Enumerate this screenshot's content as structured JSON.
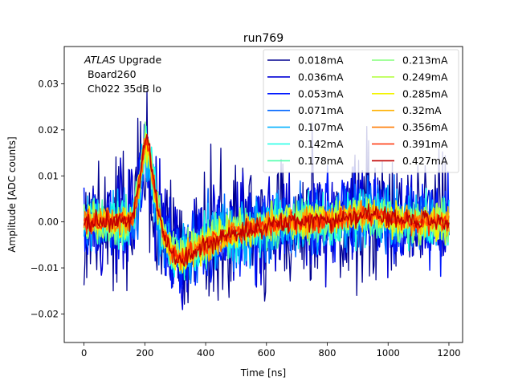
{
  "chart_data": {
    "type": "line",
    "title": "run769",
    "xlabel": "Time [ns]",
    "ylabel": "Amplitude [ADC counts]",
    "xlim": [
      -65,
      1245
    ],
    "ylim": [
      -0.0262,
      0.0381
    ],
    "xticks": [
      0,
      200,
      400,
      600,
      800,
      1000,
      1200
    ],
    "yticks": [
      -0.02,
      -0.01,
      0.0,
      0.01,
      0.02,
      0.03
    ],
    "grid": false,
    "legend_position": "top-right",
    "legend_columns": 2,
    "annotation": {
      "experiment": "ATLAS",
      "experiment_suffix": " Upgrade",
      "line2": " Board260",
      "line3": " Ch022 35dB lo"
    },
    "template_x": [
      0,
      150,
      165,
      180,
      195,
      205,
      215,
      230,
      245,
      265,
      290,
      315,
      340,
      370,
      400,
      450,
      500,
      550,
      600,
      700,
      800,
      850,
      900,
      940,
      980,
      1020,
      1080,
      1140,
      1200
    ],
    "template_y": [
      0.0,
      0.0,
      0.002,
      0.008,
      0.016,
      0.018,
      0.015,
      0.008,
      0.002,
      -0.003,
      -0.007,
      -0.0085,
      -0.0075,
      -0.006,
      -0.005,
      -0.0035,
      -0.0025,
      -0.0015,
      -0.0008,
      0.0,
      0.0003,
      0.0008,
      0.0015,
      0.0018,
      0.0012,
      0.0005,
      0.0001,
      0.0,
      0.0
    ],
    "series": [
      {
        "name": "0.018mA",
        "color": "#00008f",
        "noise": 0.0075
      },
      {
        "name": "0.036mA",
        "color": "#0000d6",
        "noise": 0.0055
      },
      {
        "name": "0.053mA",
        "color": "#0019ff",
        "noise": 0.0045
      },
      {
        "name": "0.071mA",
        "color": "#0065ff",
        "noise": 0.0038
      },
      {
        "name": "0.107mA",
        "color": "#00b0ff",
        "noise": 0.0032
      },
      {
        "name": "0.142mA",
        "color": "#19ffe6",
        "noise": 0.0026
      },
      {
        "name": "0.178mA",
        "color": "#50ffad",
        "noise": 0.0023
      },
      {
        "name": "0.213mA",
        "color": "#83ff7a",
        "noise": 0.0021
      },
      {
        "name": "0.249mA",
        "color": "#b6ff47",
        "noise": 0.0019
      },
      {
        "name": "0.285mA",
        "color": "#f3f400",
        "noise": 0.0017
      },
      {
        "name": "0.32mA",
        "color": "#ffb000",
        "noise": 0.0015
      },
      {
        "name": "0.356mA",
        "color": "#ff7a00",
        "noise": 0.0013
      },
      {
        "name": "0.391mA",
        "color": "#ff2e00",
        "noise": 0.0012
      },
      {
        "name": "0.427mA",
        "color": "#c00000",
        "noise": 0.0011
      }
    ]
  }
}
